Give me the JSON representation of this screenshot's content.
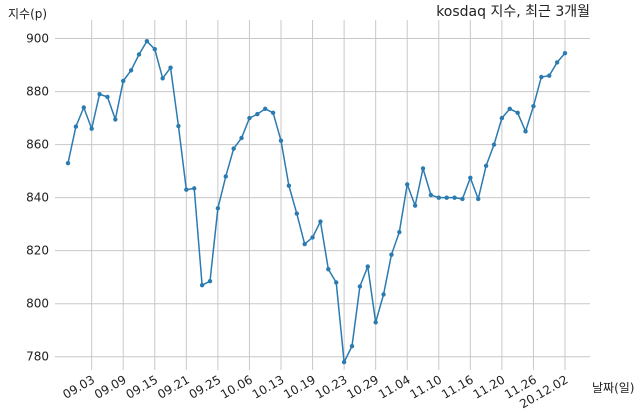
{
  "chart_data": {
    "type": "line",
    "title": "kosdaq 지수, 최근 3개월",
    "x_label": "날짜(일)",
    "y_label": "지수(p)",
    "categories": [
      null,
      null,
      null,
      "09.03",
      null,
      null,
      null,
      "09.09",
      null,
      null,
      null,
      "09.15",
      null,
      null,
      null,
      "09.21",
      null,
      null,
      null,
      "09.25",
      null,
      null,
      null,
      "10.06",
      null,
      null,
      null,
      "10.13",
      null,
      null,
      null,
      "10.19",
      null,
      null,
      null,
      "10.23",
      null,
      null,
      null,
      "10.29",
      null,
      null,
      null,
      "11.04",
      null,
      null,
      null,
      "11.10",
      null,
      null,
      null,
      "11.16",
      null,
      null,
      null,
      "11.20",
      null,
      null,
      null,
      "11.26",
      null,
      null,
      null,
      "20.12.02"
    ],
    "series": [
      {
        "name": "kosdaq",
        "color": "#2b7bb0",
        "values": [
          853,
          866.8,
          874,
          866,
          879,
          878,
          869.5,
          884,
          888,
          894,
          899,
          896,
          885,
          889,
          867,
          843,
          843.5,
          807,
          808.5,
          836,
          848,
          858.5,
          862.5,
          870,
          871.5,
          873.5,
          872,
          861.5,
          844.5,
          834,
          822.5,
          825,
          831,
          813,
          808,
          778,
          784,
          806.5,
          814,
          793,
          803.5,
          818.5,
          827,
          845,
          837,
          851,
          841,
          840,
          840,
          840,
          839.5,
          847.5,
          839.5,
          852,
          860,
          870,
          873.5,
          872,
          865,
          874.5,
          885.5,
          886,
          891,
          894.5
        ]
      }
    ],
    "ylim": [
      775,
      907
    ],
    "yticks": [
      780,
      800,
      820,
      840,
      860,
      880,
      900
    ],
    "grid": true
  }
}
